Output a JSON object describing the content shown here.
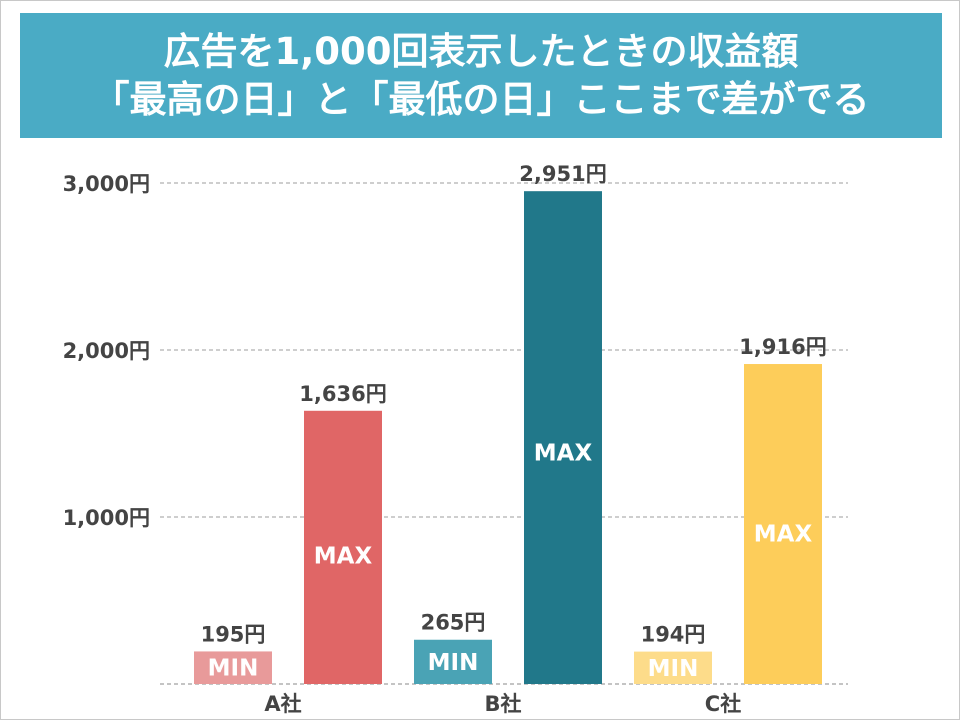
{
  "title": {
    "line1": "広告を1,000回表示したときの収益額",
    "line2": "「最高の日」と「最低の日」ここまで差がでる"
  },
  "colors": {
    "title_bg": "#4aabc5",
    "grid": "#b0b0b0"
  },
  "chart_data": {
    "type": "bar",
    "categories": [
      "A社",
      "B社",
      "C社"
    ],
    "ylim": [
      0,
      3000
    ],
    "yticks": [
      1000,
      2000,
      3000
    ],
    "ytick_labels": [
      "1,000円",
      "2,000円",
      "3,000円"
    ],
    "grid": true,
    "series": [
      {
        "name": "MIN",
        "values": [
          195,
          265,
          194
        ],
        "labels": [
          "195円",
          "265円",
          "194円"
        ],
        "colors": [
          "#e89a9a",
          "#4aa3b5",
          "#fddc8a"
        ]
      },
      {
        "name": "MAX",
        "values": [
          1636,
          2951,
          1916
        ],
        "labels": [
          "1,636円",
          "2,951円",
          "1,916円"
        ],
        "colors": [
          "#e06666",
          "#21788a",
          "#fdcd5a"
        ]
      }
    ]
  }
}
